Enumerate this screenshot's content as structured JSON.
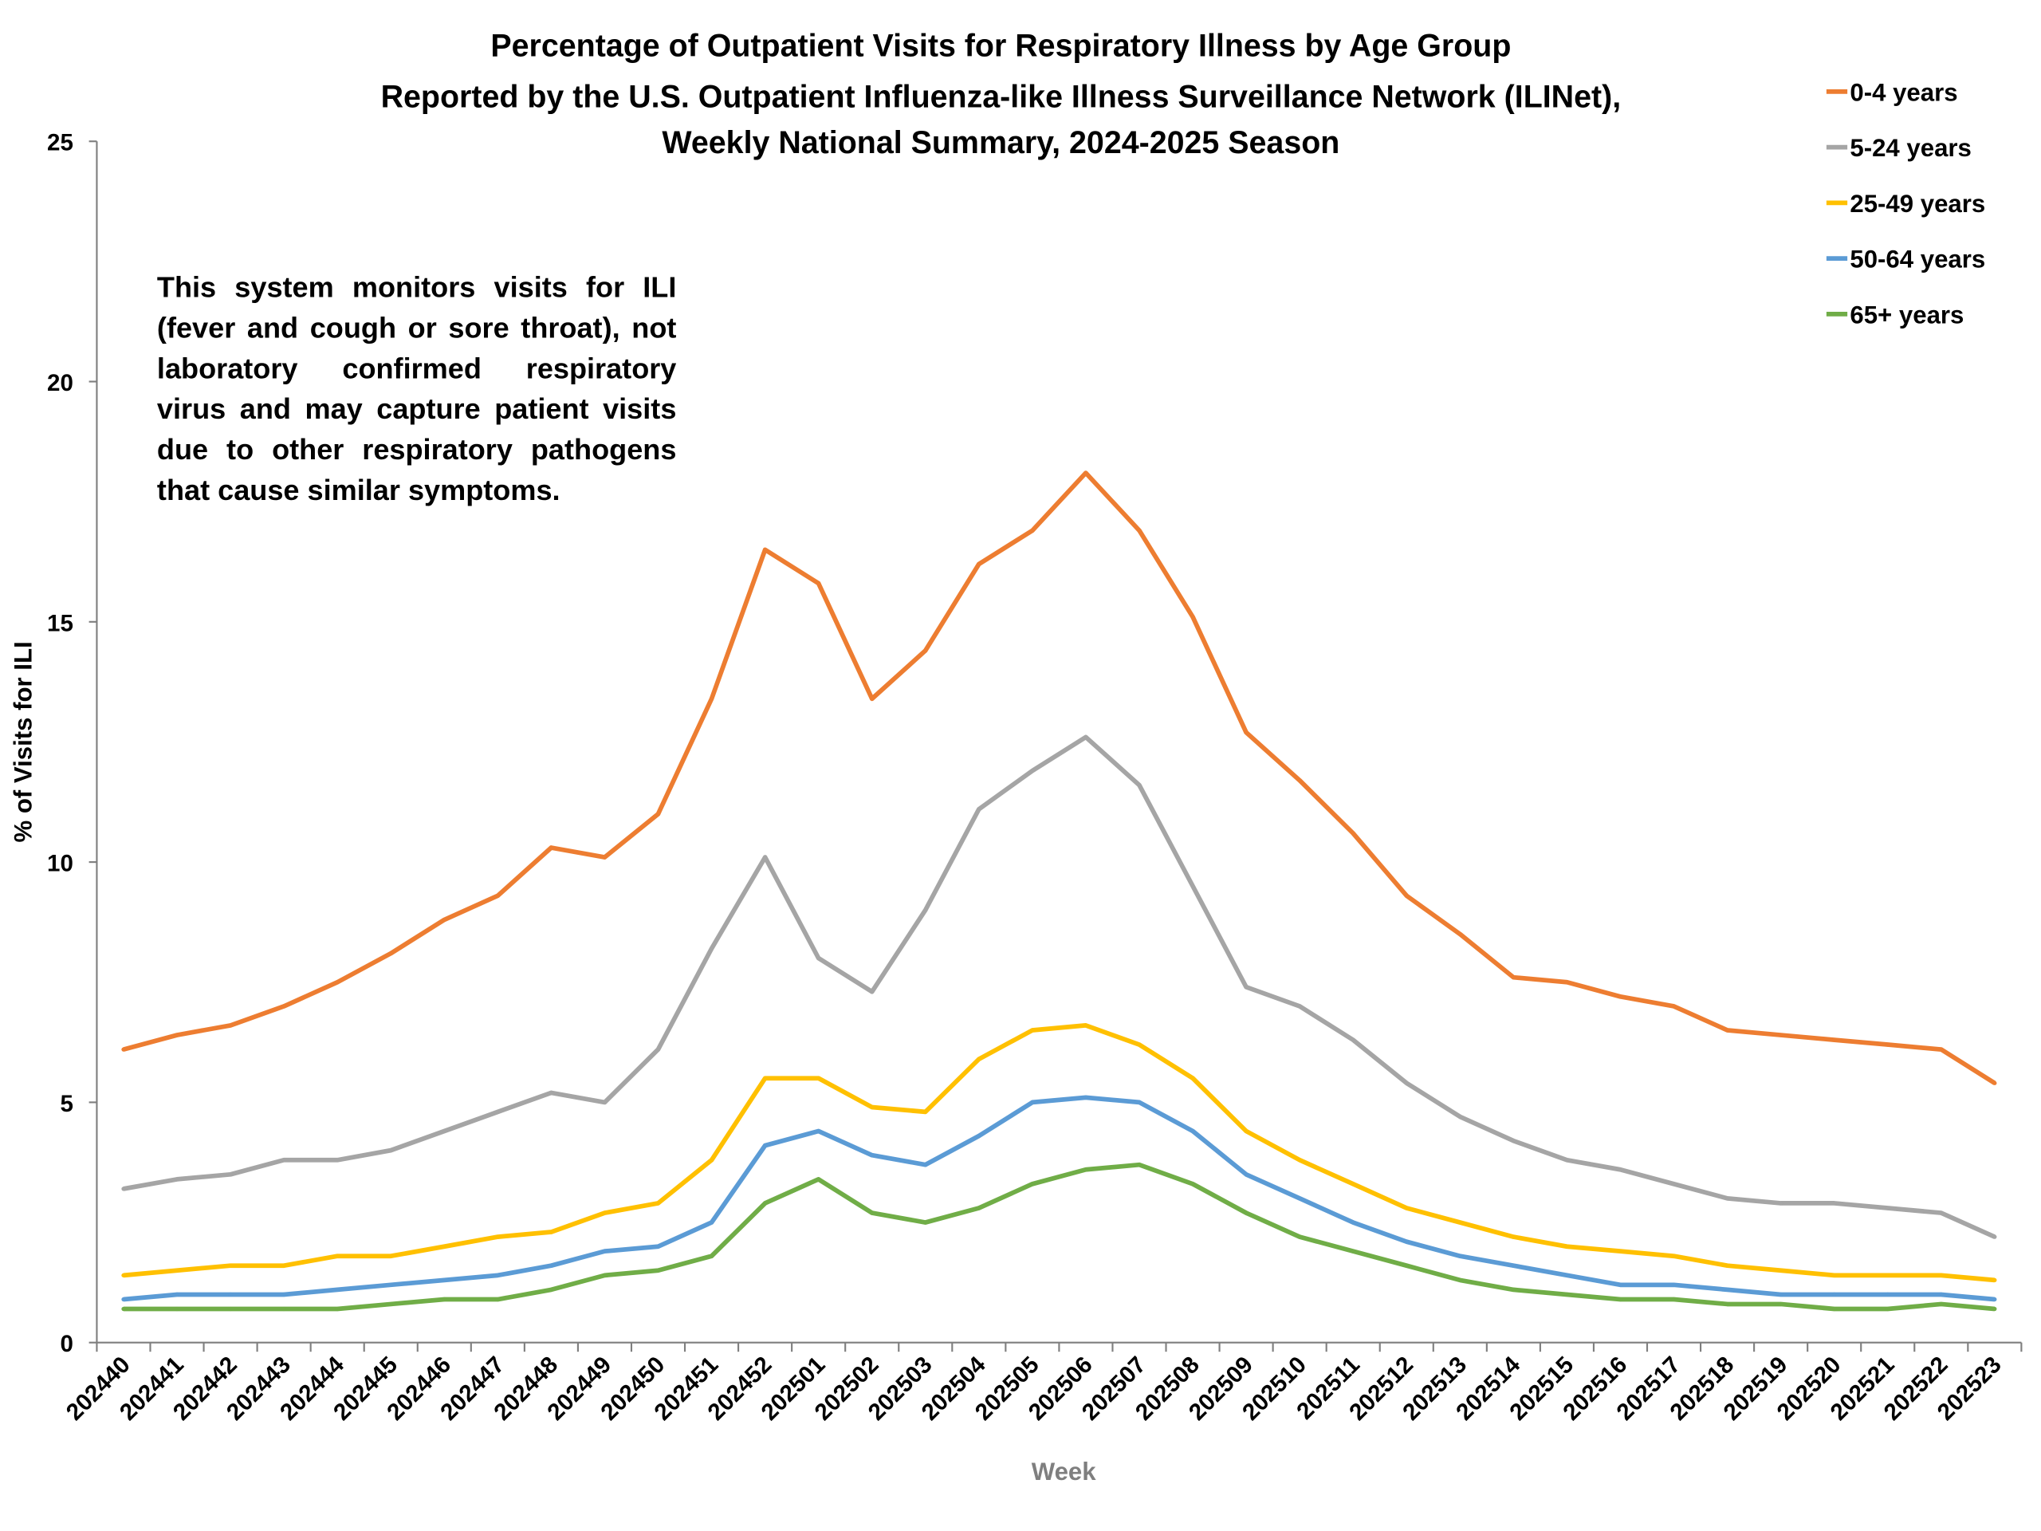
{
  "chart_data": {
    "type": "line",
    "title": [
      "Percentage of Outpatient Visits for Respiratory Illness by Age Group",
      "Reported by the U.S. Outpatient Influenza-like Illness Surveillance Network (ILINet),",
      "Weekly National Summary, 2024-2025 Season"
    ],
    "xlabel": "Week",
    "ylabel": "% of Visits for ILI",
    "ylim": [
      0,
      25
    ],
    "yticks": [
      "0",
      "5",
      "10",
      "15",
      "20",
      "25"
    ],
    "grid": false,
    "legend_position": "top-right",
    "annotation": "This system monitors visits for ILI (fever and cough or sore throat), not laboratory confirmed respiratory virus and may capture patient visits due to other respiratory pathogens that cause similar symptoms.",
    "categories": [
      "202440",
      "202441",
      "202442",
      "202443",
      "202444",
      "202445",
      "202446",
      "202447",
      "202448",
      "202449",
      "202450",
      "202451",
      "202452",
      "202501",
      "202502",
      "202503",
      "202504",
      "202505",
      "202506",
      "202507",
      "202508",
      "202509",
      "202510",
      "202511",
      "202512",
      "202513",
      "202514",
      "202515",
      "202516",
      "202517",
      "202518",
      "202519",
      "202520",
      "202521",
      "202522",
      "202523"
    ],
    "series": [
      {
        "name": "0-4 years",
        "color": "#ed7d31",
        "values": [
          6.1,
          6.4,
          6.6,
          7.0,
          7.5,
          8.1,
          8.8,
          9.3,
          10.3,
          10.1,
          11.0,
          13.4,
          16.5,
          15.8,
          13.4,
          14.4,
          16.2,
          16.9,
          18.1,
          16.9,
          15.1,
          12.7,
          11.7,
          10.6,
          9.3,
          8.5,
          7.6,
          7.5,
          7.2,
          7.0,
          6.5,
          6.4,
          6.3,
          6.2,
          6.1,
          5.4
        ]
      },
      {
        "name": "5-24 years",
        "color": "#a5a5a5",
        "values": [
          3.2,
          3.4,
          3.5,
          3.8,
          3.8,
          4.0,
          4.4,
          4.8,
          5.2,
          5.0,
          6.1,
          8.2,
          10.1,
          8.0,
          7.3,
          9.0,
          11.1,
          11.9,
          12.6,
          11.6,
          9.5,
          7.4,
          7.0,
          6.3,
          5.4,
          4.7,
          4.2,
          3.8,
          3.6,
          3.3,
          3.0,
          2.9,
          2.9,
          2.8,
          2.7,
          2.2
        ]
      },
      {
        "name": "25-49 years",
        "color": "#ffc000",
        "values": [
          1.4,
          1.5,
          1.6,
          1.6,
          1.8,
          1.8,
          2.0,
          2.2,
          2.3,
          2.7,
          2.9,
          3.8,
          5.5,
          5.5,
          4.9,
          4.8,
          5.9,
          6.5,
          6.6,
          6.2,
          5.5,
          4.4,
          3.8,
          3.3,
          2.8,
          2.5,
          2.2,
          2.0,
          1.9,
          1.8,
          1.6,
          1.5,
          1.4,
          1.4,
          1.4,
          1.3
        ]
      },
      {
        "name": "50-64 years",
        "color": "#5b9bd5",
        "values": [
          0.9,
          1.0,
          1.0,
          1.0,
          1.1,
          1.2,
          1.3,
          1.4,
          1.6,
          1.9,
          2.0,
          2.5,
          4.1,
          4.4,
          3.9,
          3.7,
          4.3,
          5.0,
          5.1,
          5.0,
          4.4,
          3.5,
          3.0,
          2.5,
          2.1,
          1.8,
          1.6,
          1.4,
          1.2,
          1.2,
          1.1,
          1.0,
          1.0,
          1.0,
          1.0,
          0.9
        ]
      },
      {
        "name": "65+ years",
        "color": "#70ad47",
        "values": [
          0.7,
          0.7,
          0.7,
          0.7,
          0.7,
          0.8,
          0.9,
          0.9,
          1.1,
          1.4,
          1.5,
          1.8,
          2.9,
          3.4,
          2.7,
          2.5,
          2.8,
          3.3,
          3.6,
          3.7,
          3.3,
          2.7,
          2.2,
          1.9,
          1.6,
          1.3,
          1.1,
          1.0,
          0.9,
          0.9,
          0.8,
          0.8,
          0.7,
          0.7,
          0.8,
          0.7
        ]
      }
    ]
  }
}
